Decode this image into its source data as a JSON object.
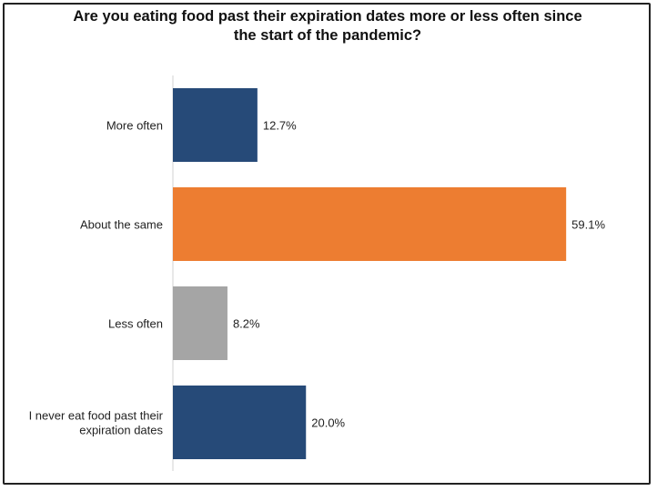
{
  "chart_data": {
    "type": "bar",
    "orientation": "horizontal",
    "title_lines": [
      "Are you eating food past their expiration dates more or less often since",
      "the start of the pandemic?"
    ],
    "categories": [
      [
        "More often"
      ],
      [
        "About the same"
      ],
      [
        "Less often"
      ],
      [
        "I never eat food past their",
        "expiration dates"
      ]
    ],
    "values": [
      12.7,
      59.1,
      8.2,
      20.0
    ],
    "value_labels": [
      "12.7%",
      "59.1%",
      "8.2%",
      "20.0%"
    ],
    "colors": [
      "#264a78",
      "#ed7d31",
      "#a5a5a5",
      "#264a78"
    ],
    "xlim": [
      0,
      64
    ],
    "grid": false,
    "legend": "none"
  }
}
